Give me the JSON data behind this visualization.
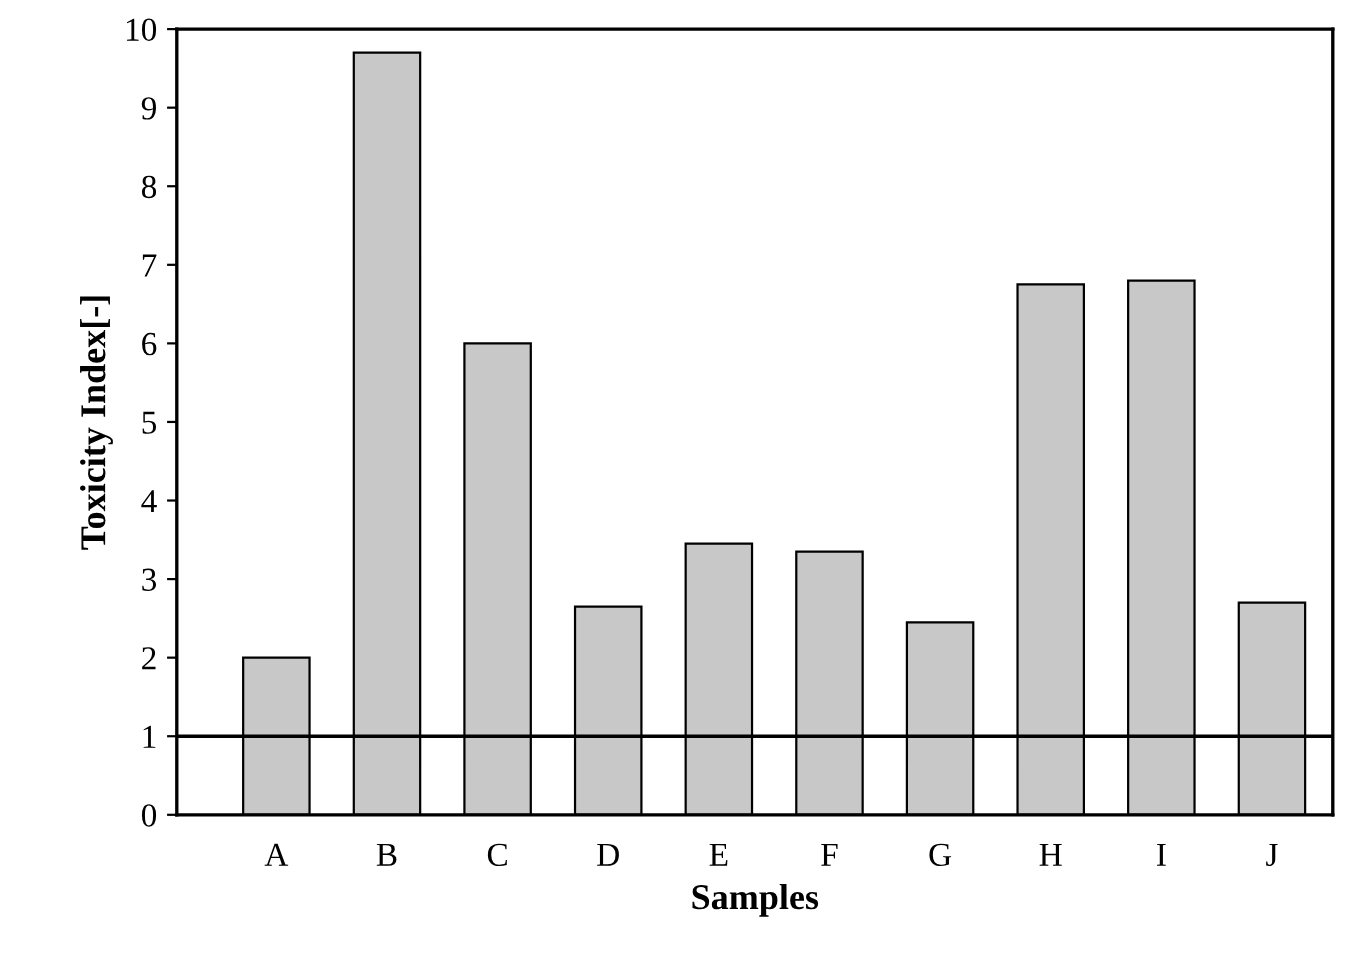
{
  "chart_data": {
    "type": "bar",
    "xlabel": "Samples",
    "ylabel": "Toxicity Index[-]",
    "categories": [
      "A",
      "B",
      "C",
      "D",
      "E",
      "F",
      "G",
      "H",
      "I",
      "J"
    ],
    "values": [
      2.0,
      9.7,
      6.0,
      2.65,
      3.45,
      3.35,
      2.45,
      6.75,
      6.8,
      2.7
    ],
    "color": "#c8c8c8",
    "ylim": [
      0,
      10
    ],
    "yticks": [
      0,
      1,
      2,
      3,
      4,
      5,
      6,
      7,
      8,
      9,
      10
    ],
    "ref_lines": [
      {
        "axis": "y",
        "value": 1,
        "color": "#000000"
      }
    ],
    "grid": false,
    "legend": false
  }
}
